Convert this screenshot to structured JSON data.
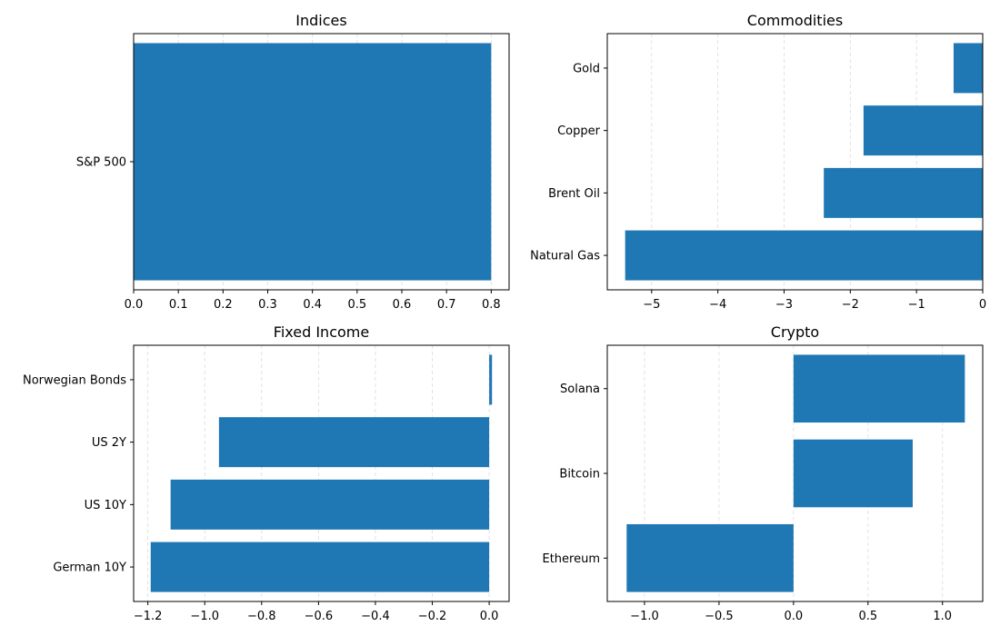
{
  "chart_data": [
    {
      "type": "bar",
      "orientation": "horizontal",
      "title": "Indices",
      "categories": [
        "S&P 500"
      ],
      "values": [
        0.8
      ],
      "xlim": [
        0.0,
        0.84
      ],
      "xticks": [
        0.0,
        0.1,
        0.2,
        0.3,
        0.4,
        0.5,
        0.6,
        0.7,
        0.8
      ],
      "xtick_labels": [
        "0.0",
        "0.1",
        "0.2",
        "0.3",
        "0.4",
        "0.5",
        "0.6",
        "0.7",
        "0.8"
      ],
      "grid": "x, dashed",
      "bar_color": "#1f77b4"
    },
    {
      "type": "bar",
      "orientation": "horizontal",
      "title": "Commodities",
      "categories": [
        "Natural Gas",
        "Brent Oil",
        "Copper",
        "Gold"
      ],
      "values": [
        -5.4,
        -2.4,
        -1.8,
        -0.44
      ],
      "xlim": [
        -5.67,
        0.0
      ],
      "xticks": [
        -5,
        -4,
        -3,
        -2,
        -1,
        0
      ],
      "xtick_labels": [
        "−5",
        "−4",
        "−3",
        "−2",
        "−1",
        "0"
      ],
      "grid": "x, dashed",
      "bar_color": "#1f77b4"
    },
    {
      "type": "bar",
      "orientation": "horizontal",
      "title": "Fixed Income",
      "categories": [
        "German 10Y",
        "US 10Y",
        "US 2Y",
        "Norwegian Bonds"
      ],
      "values": [
        -1.19,
        -1.12,
        -0.95,
        0.01
      ],
      "xlim": [
        -1.25,
        0.07
      ],
      "xticks": [
        -1.2,
        -1.0,
        -0.8,
        -0.6,
        -0.4,
        -0.2,
        0.0
      ],
      "xtick_labels": [
        "−1.2",
        "−1.0",
        "−0.8",
        "−0.6",
        "−0.4",
        "−0.2",
        "0.0"
      ],
      "grid": "x, dashed",
      "bar_color": "#1f77b4"
    },
    {
      "type": "bar",
      "orientation": "horizontal",
      "title": "Crypto",
      "categories": [
        "Ethereum",
        "Bitcoin",
        "Solana"
      ],
      "values": [
        -1.12,
        0.8,
        1.15
      ],
      "xlim": [
        -1.25,
        1.27
      ],
      "xticks": [
        -1.0,
        -0.5,
        0.0,
        0.5,
        1.0
      ],
      "xtick_labels": [
        "−1.0",
        "−0.5",
        "0.0",
        "0.5",
        "1.0"
      ],
      "grid": "x, dashed",
      "bar_color": "#1f77b4"
    }
  ]
}
